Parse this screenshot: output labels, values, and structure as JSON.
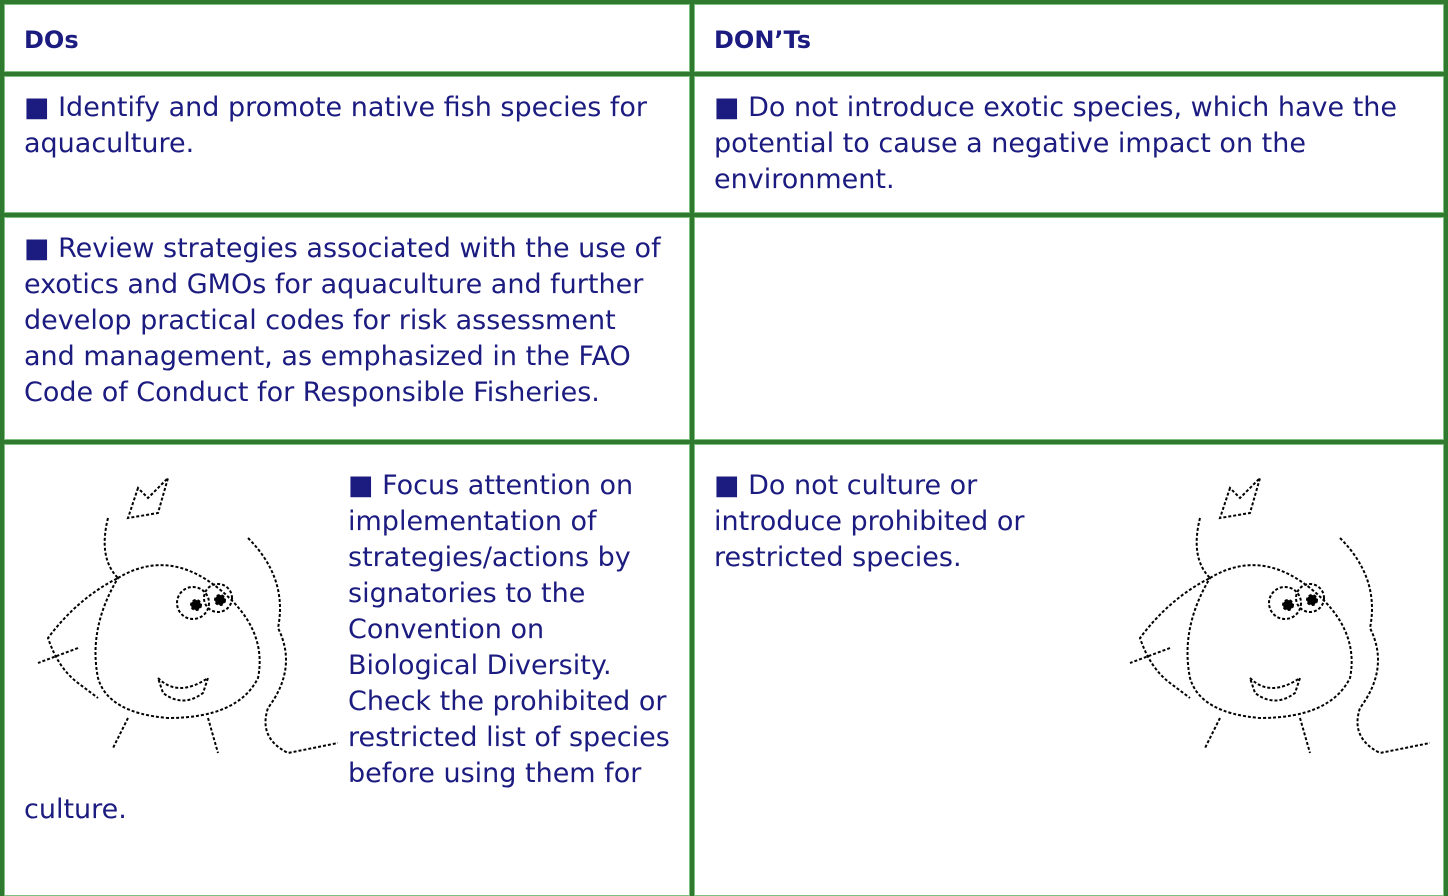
{
  "table": {
    "header": [
      "DOs",
      "DON’Ts"
    ],
    "rows": [
      [
        "■ Identify and promote native fish species for aquaculture.",
        "■ Do not introduce exotic species, which have the potential to cause a negative impact on the environment."
      ],
      [
        "■ Review strategies associated with the use of exotics and GMOs for aquaculture and further develop practical codes for risk assessment and management, as emphasized in the FAO Code of Conduct for Responsible Fisheries."
      ],
      [
        "■ Focus attention on implementation of strategies/actions by signatories to the Convention on Biological Diversity. Check the prohibited or restricted list of species before using them for culture.",
        "■  Do not culture or introduce prohibited or restricted species."
      ]
    ]
  }
}
